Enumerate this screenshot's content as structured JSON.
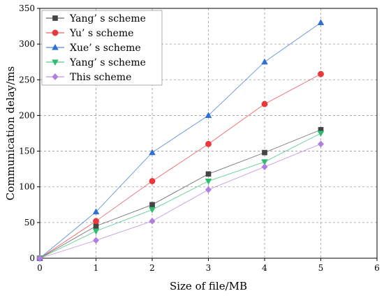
{
  "chart_data": {
    "type": "line",
    "title": "",
    "xlabel": "Size of file/MB",
    "ylabel": "Communication delay/ms",
    "xlim": [
      0,
      6
    ],
    "ylim": [
      0,
      350
    ],
    "xticks": [
      0,
      1,
      2,
      3,
      4,
      5,
      6
    ],
    "yticks": [
      0,
      50,
      100,
      150,
      200,
      250,
      300,
      350
    ],
    "grid": true,
    "legend_position": "top-left",
    "x": [
      0,
      1,
      2,
      3,
      4,
      5
    ],
    "series": [
      {
        "name": "Yang’ s scheme",
        "values": [
          0,
          45,
          75,
          118,
          148,
          180
        ],
        "color": "#444444",
        "marker": "square"
      },
      {
        "name": "Yu’ s scheme",
        "values": [
          0,
          52,
          108,
          160,
          216,
          258
        ],
        "color": "#e8383c",
        "marker": "circle"
      },
      {
        "name": "Xue’ s scheme",
        "values": [
          0,
          65,
          148,
          200,
          275,
          330
        ],
        "color": "#2f6fd6",
        "marker": "triangle-up"
      },
      {
        "name": "Yang’ s scheme",
        "values": [
          0,
          38,
          68,
          108,
          135,
          175
        ],
        "color": "#2ebd6f",
        "marker": "triangle-down"
      },
      {
        "name": "This scheme",
        "values": [
          0,
          25,
          52,
          96,
          128,
          160
        ],
        "color": "#b07ee0",
        "marker": "diamond"
      }
    ]
  }
}
